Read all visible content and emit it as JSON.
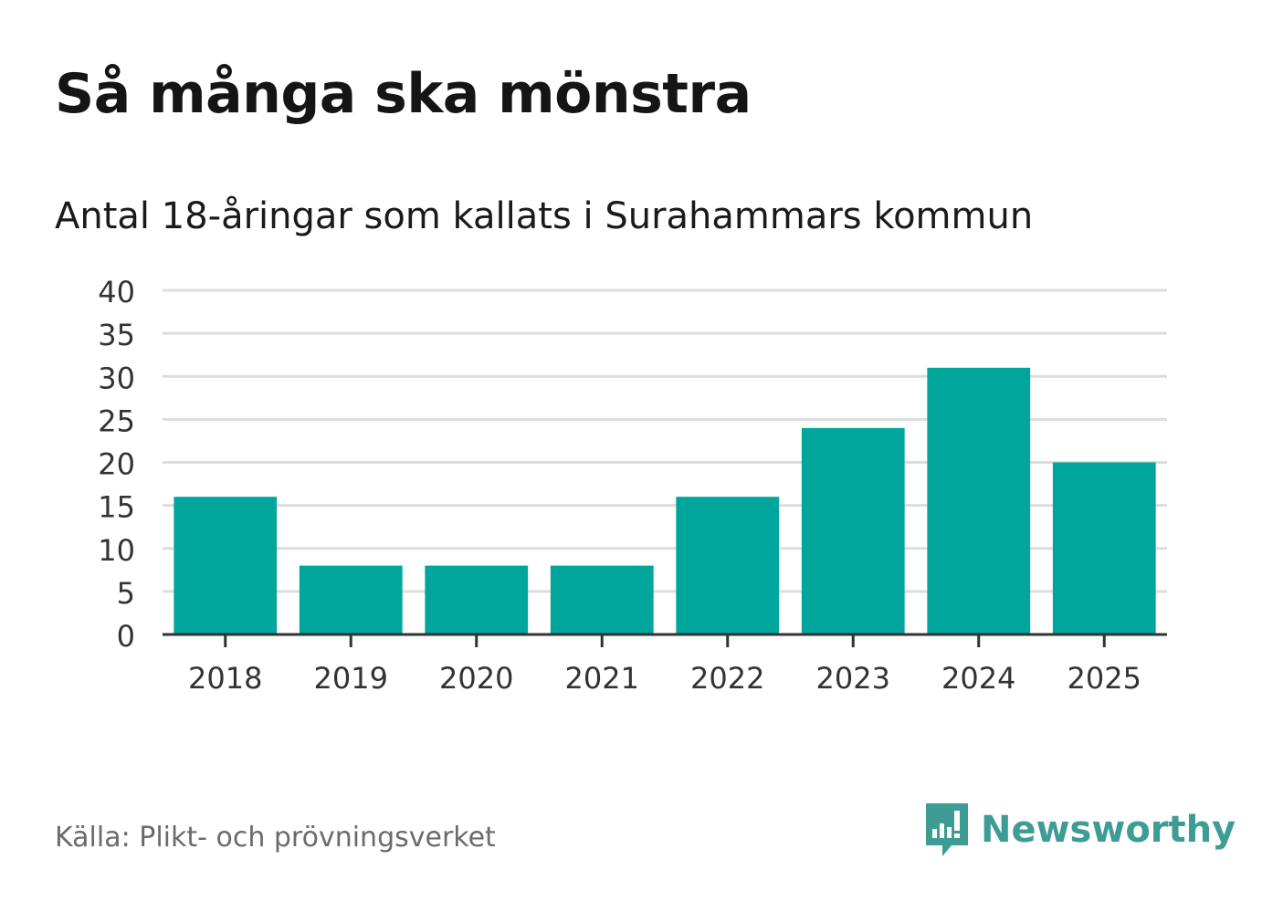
{
  "header": {
    "title": "Så många ska mönstra",
    "subtitle": "Antal 18-åringar som kallats i Surahammars kommun"
  },
  "footer": {
    "source": "Källa: Plikt- och prövningsverket",
    "brand": "Newsworthy",
    "brand_icon": "newsworthy-logo-icon"
  },
  "colors": {
    "bar": "#00a59b",
    "grid": "#dddddd",
    "axis": "#333333",
    "brand": "#3d9c93"
  },
  "chart_data": {
    "type": "bar",
    "title": "Antal 18-åringar som kallats i Surahammars kommun",
    "xlabel": "",
    "ylabel": "",
    "categories": [
      "2018",
      "2019",
      "2020",
      "2021",
      "2022",
      "2023",
      "2024",
      "2025"
    ],
    "values": [
      16,
      8,
      8,
      8,
      16,
      24,
      31,
      20
    ],
    "ylim": [
      0,
      40
    ],
    "yticks": [
      0,
      5,
      10,
      15,
      20,
      25,
      30,
      35,
      40
    ],
    "grid": true,
    "legend": "none"
  }
}
